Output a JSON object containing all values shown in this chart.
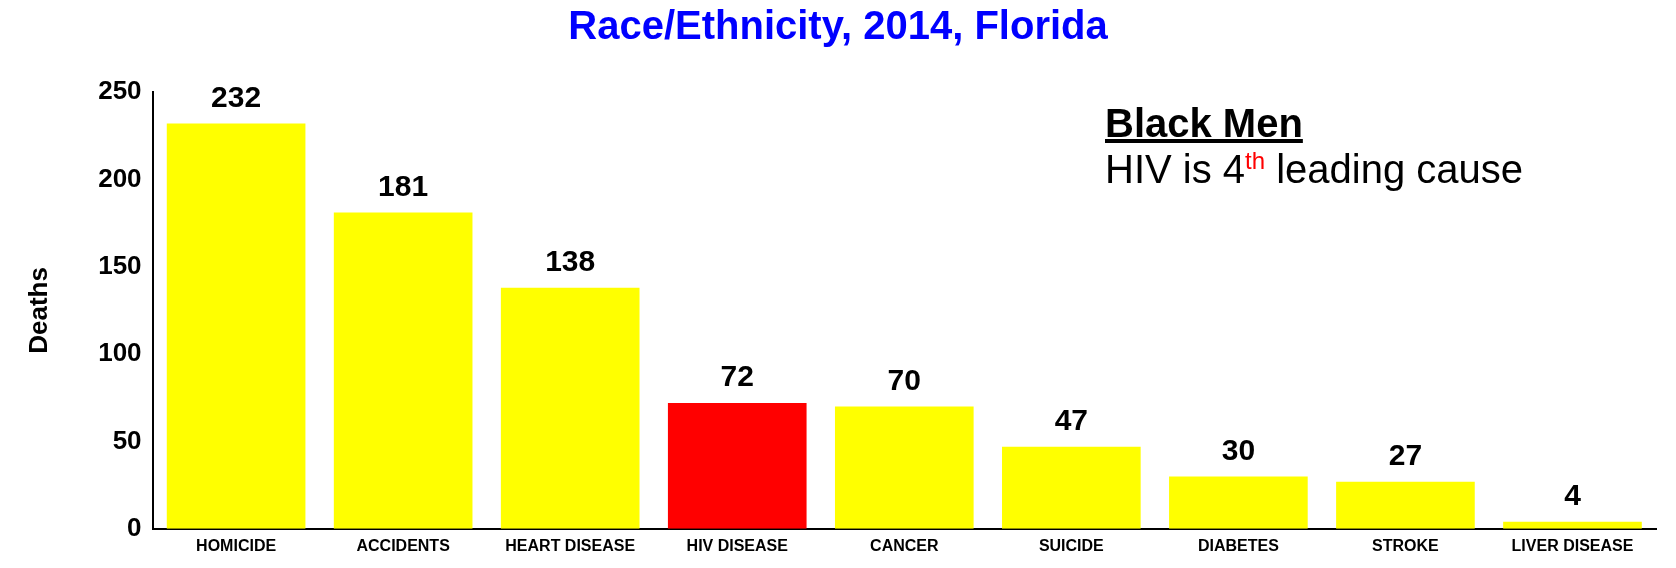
{
  "chart_data": {
    "type": "bar",
    "title": "Race/Ethnicity, 2014, Florida",
    "ylabel": "Deaths",
    "categories": [
      "HOMICIDE",
      "ACCIDENTS",
      "HEART DISEASE",
      "HIV DISEASE",
      "CANCER",
      "SUICIDE",
      "DIABETES",
      "STROKE",
      "LIVER DISEASE"
    ],
    "values": [
      232,
      181,
      138,
      72,
      70,
      47,
      30,
      27,
      4
    ],
    "colors": [
      "#ffff00",
      "#ffff00",
      "#ffff00",
      "#ff0000",
      "#ffff00",
      "#ffff00",
      "#ffff00",
      "#ffff00",
      "#ffff00"
    ],
    "ylim": [
      0,
      250
    ],
    "yticks": [
      0,
      50,
      100,
      150,
      200,
      250
    ],
    "grid": false,
    "legend": false,
    "data_labels": true,
    "annotations": [
      "Black Men",
      "HIV is 4$^{th}$ leading cause"
    ]
  }
}
